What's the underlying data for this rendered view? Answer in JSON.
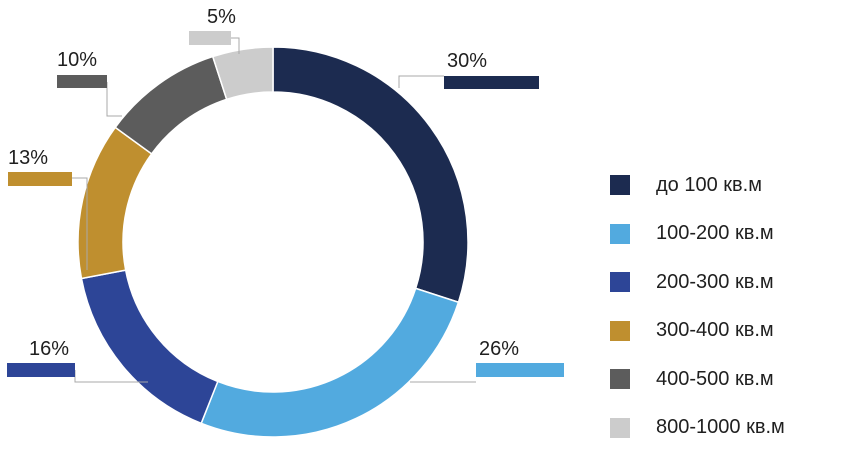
{
  "chart_data": {
    "type": "pie",
    "categories": [
      "до 100 кв.м",
      "100-200 кв.м",
      "200-300 кв.м",
      "300-400 кв.м",
      "400-500 кв.м",
      "800-1000 кв.м"
    ],
    "values": [
      30,
      26,
      16,
      13,
      10,
      5
    ],
    "value_labels": [
      "30%",
      "26%",
      "16%",
      "13%",
      "10%",
      "5%"
    ],
    "colors": [
      "#1c2b50",
      "#52aadf",
      "#2d4597",
      "#bf8f2f",
      "#5c5c5c",
      "#cccccc"
    ],
    "legend_position": "right",
    "style": "donut"
  }
}
